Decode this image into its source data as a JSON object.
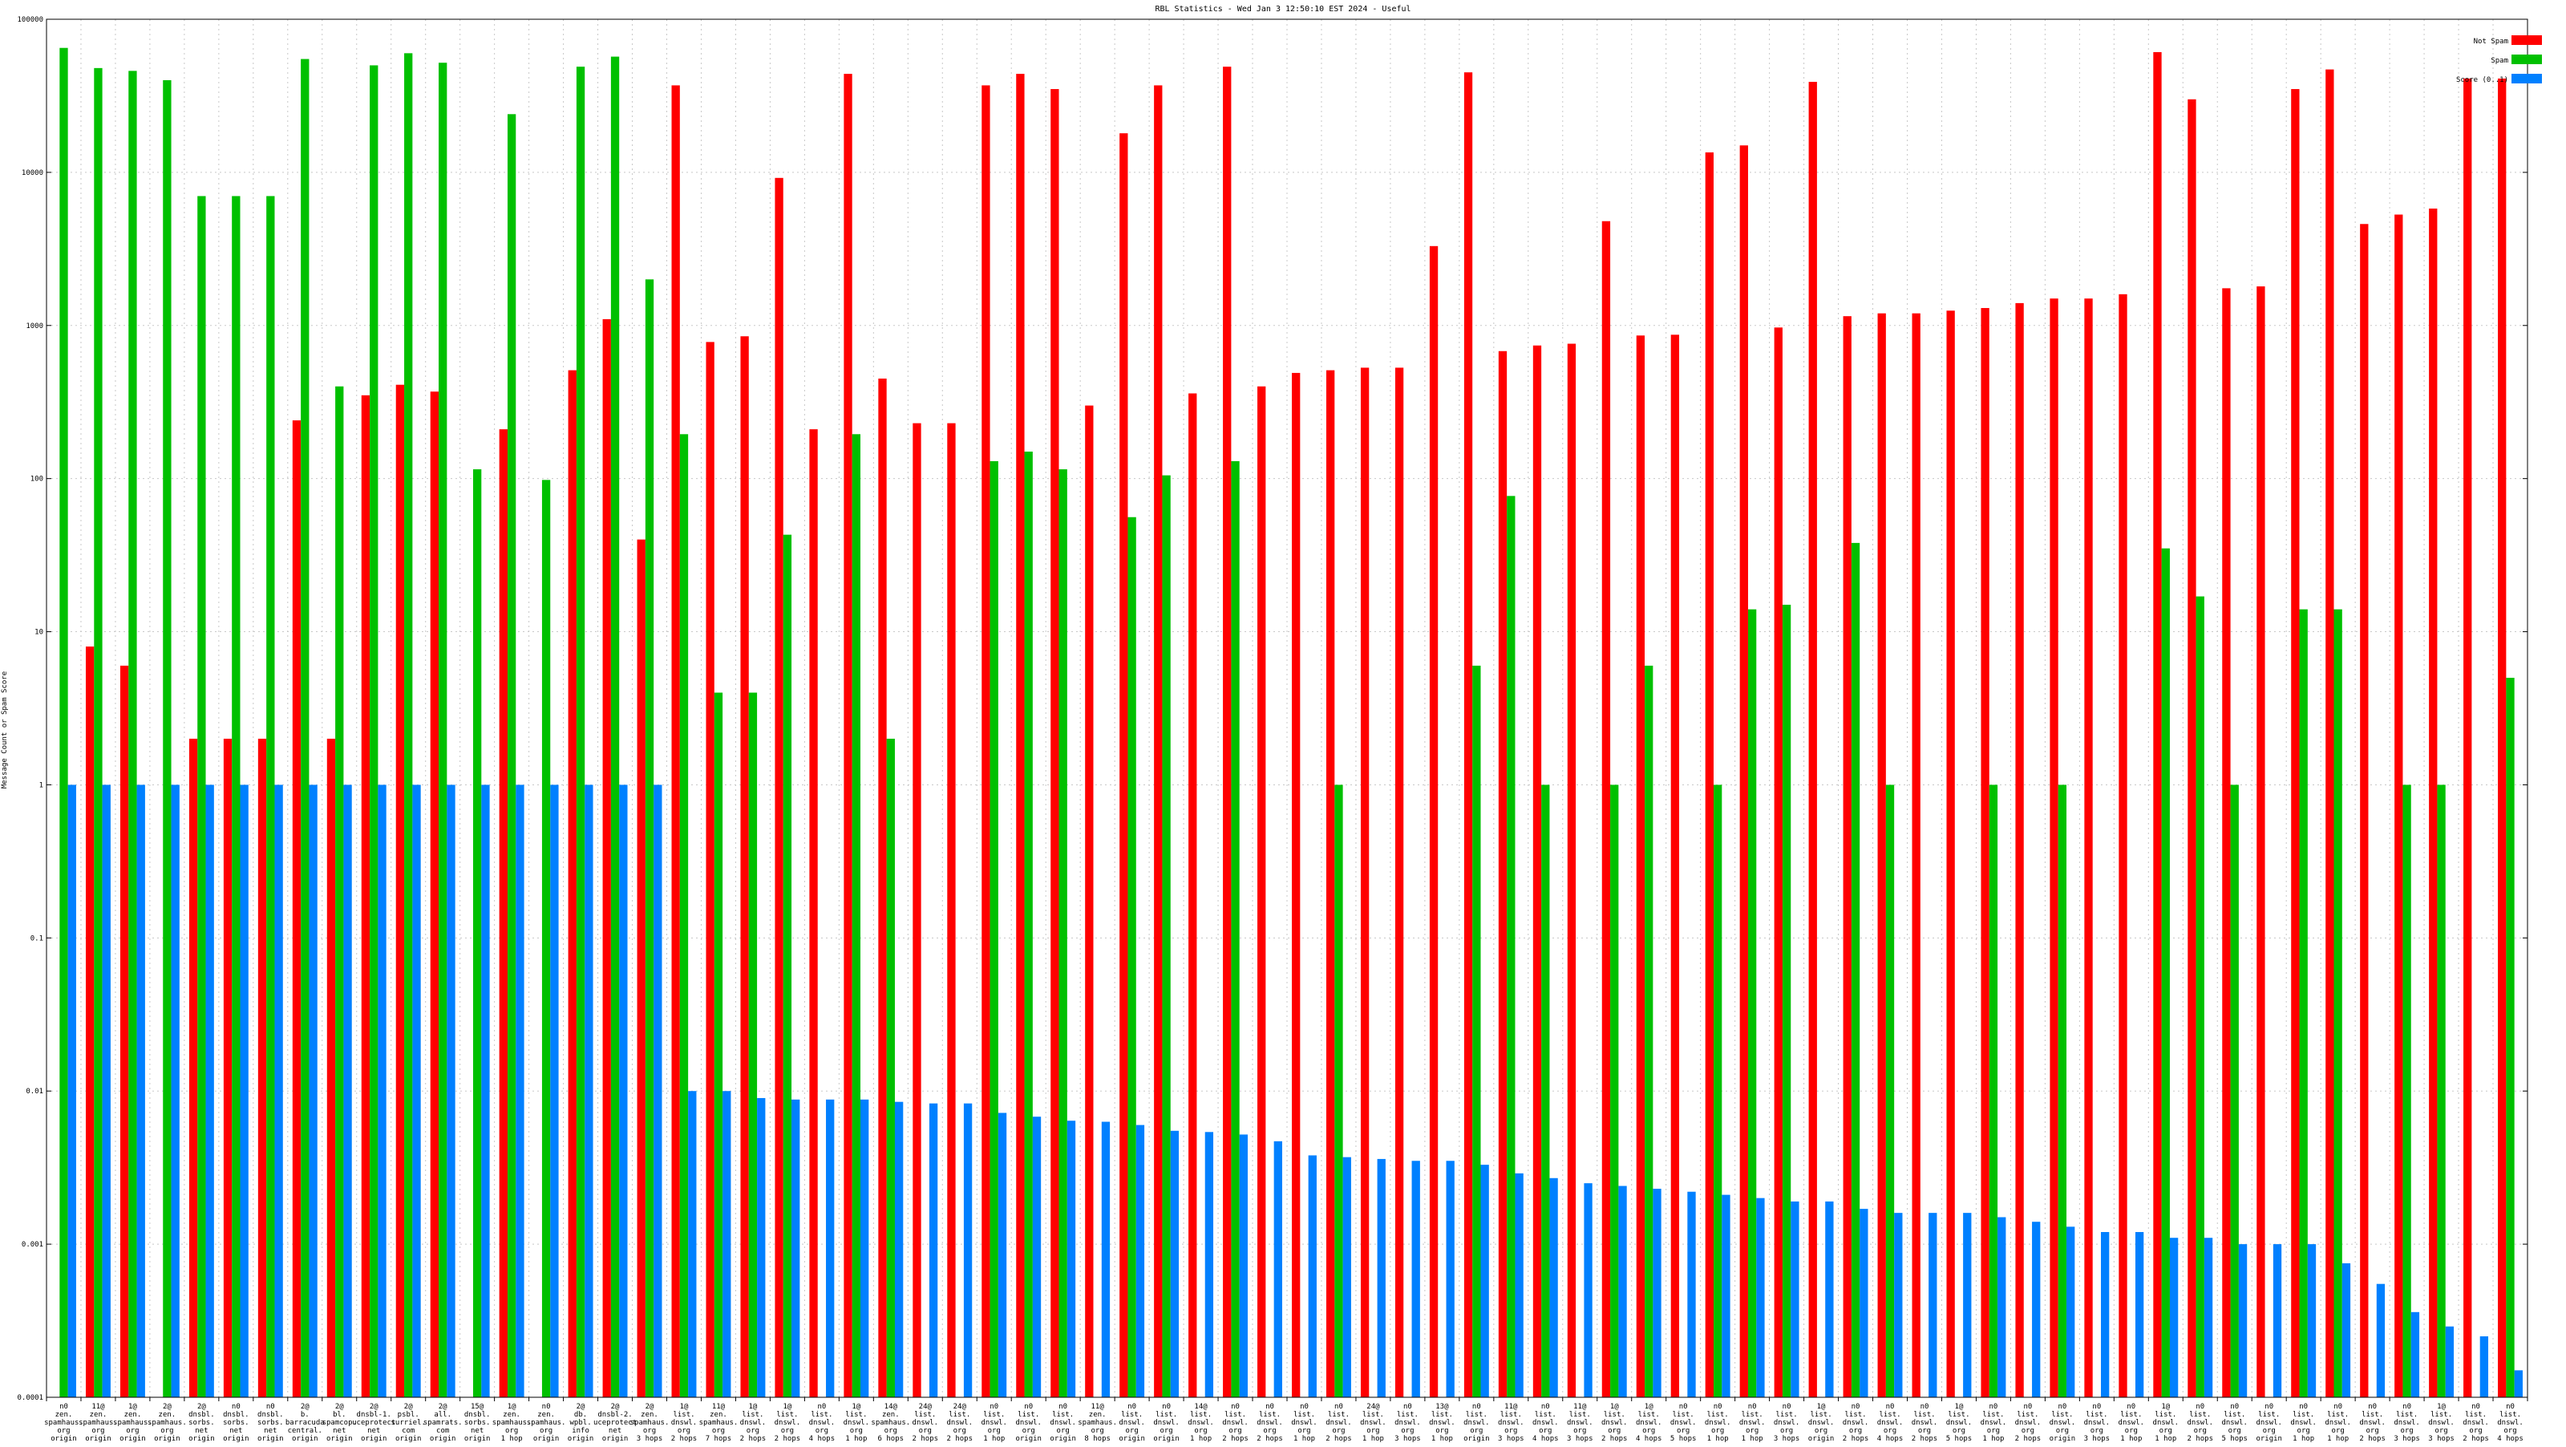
{
  "chart_data": {
    "type": "bar",
    "title": "RBL Statistics - Wed Jan  3 12:50:10 EST 2024 - Useful",
    "xlabel": "",
    "ylabel": "Message Count or Spam Score",
    "y_scale": "log",
    "ylim": [
      0.0001,
      100000
    ],
    "y_ticks": [
      "0.0001",
      "0.001",
      "0.01",
      "0.1",
      "1",
      "10",
      "100",
      "1000",
      "10000",
      "100000"
    ],
    "grid": true,
    "legend_position": "top-right",
    "colors": {
      "Not Spam": "#ff0000",
      "Spam": "#00c000",
      "Score": "#0080ff"
    },
    "categories": [
      [
        "n0",
        "zen.",
        "spamhaus.",
        "org",
        "origin"
      ],
      [
        "11@",
        "zen.",
        "spamhaus.",
        "org",
        "origin"
      ],
      [
        "1@",
        "zen.",
        "spamhaus.",
        "org",
        "origin"
      ],
      [
        "2@",
        "zen.",
        "spamhaus.",
        "org",
        "origin"
      ],
      [
        "2@",
        "dnsbl.",
        "sorbs.",
        "net",
        "origin"
      ],
      [
        "n0",
        "dnsbl.",
        "sorbs.",
        "net",
        "origin"
      ],
      [
        "n0",
        "dnsbl.",
        "sorbs.",
        "net",
        "origin"
      ],
      [
        "2@",
        "b.",
        "barracuda",
        "central.",
        "origin"
      ],
      [
        "2@",
        "bl.",
        "spamcop.",
        "net",
        "origin"
      ],
      [
        "2@",
        "dnsbl-1.",
        "uceprotect",
        "net",
        "origin"
      ],
      [
        "2@",
        "psbl.",
        "surriel.",
        "com",
        "origin"
      ],
      [
        "2@",
        "all.",
        "spamrats.",
        "com",
        "origin"
      ],
      [
        "15@",
        "dnsbl.",
        "sorbs.",
        "net",
        "origin"
      ],
      [
        "1@",
        "zen.",
        "spamhaus.",
        "org",
        "1 hop"
      ],
      [
        "n0",
        "zen.",
        "spamhaus.",
        "org",
        "origin"
      ],
      [
        "2@",
        "db.",
        "wpbl.",
        "info",
        "origin"
      ],
      [
        "2@",
        "dnsbl-2.",
        "uceprotect",
        "net",
        "origin"
      ],
      [
        "2@",
        "zen.",
        "spamhaus.",
        "org",
        "3 hops"
      ],
      [
        "1@",
        "list.",
        "dnswl.",
        "org",
        "2 hops"
      ],
      [
        "11@",
        "zen.",
        "spamhaus.",
        "org",
        "7 hops"
      ],
      [
        "1@",
        "list.",
        "dnswl.",
        "org",
        "2 hops"
      ],
      [
        "1@",
        "list.",
        "dnswl.",
        "org",
        "2 hops"
      ],
      [
        "n0",
        "list.",
        "dnswl.",
        "org",
        "4 hops"
      ],
      [
        "1@",
        "list.",
        "dnswl.",
        "org",
        "1 hop"
      ],
      [
        "14@",
        "zen.",
        "spamhaus.",
        "org",
        "6 hops"
      ],
      [
        "24@",
        "list.",
        "dnswl.",
        "org",
        "2 hops"
      ],
      [
        "24@",
        "list.",
        "dnswl.",
        "org",
        "2 hops"
      ],
      [
        "n0",
        "list.",
        "dnswl.",
        "org",
        "1 hop"
      ],
      [
        "n0",
        "list.",
        "dnswl.",
        "org",
        "origin"
      ],
      [
        "n0",
        "list.",
        "dnswl.",
        "org",
        "origin"
      ],
      [
        "11@",
        "zen.",
        "spamhaus.",
        "org",
        "8 hops"
      ],
      [
        "n0",
        "list.",
        "dnswl.",
        "org",
        "origin"
      ],
      [
        "n0",
        "list.",
        "dnswl.",
        "org",
        "origin"
      ],
      [
        "14@",
        "list.",
        "dnswl.",
        "org",
        "1 hop"
      ],
      [
        "n0",
        "list.",
        "dnswl.",
        "org",
        "2 hops"
      ],
      [
        "n0",
        "list.",
        "dnswl.",
        "org",
        "2 hops"
      ],
      [
        "n0",
        "list.",
        "dnswl.",
        "org",
        "1 hop"
      ],
      [
        "n0",
        "list.",
        "dnswl.",
        "org",
        "2 hops"
      ],
      [
        "24@",
        "list.",
        "dnswl.",
        "org",
        "1 hop"
      ],
      [
        "n0",
        "list.",
        "dnswl.",
        "org",
        "3 hops"
      ],
      [
        "13@",
        "list.",
        "dnswl.",
        "org",
        "1 hop"
      ],
      [
        "n0",
        "list.",
        "dnswl.",
        "org",
        "origin"
      ],
      [
        "11@",
        "list.",
        "dnswl.",
        "org",
        "3 hops"
      ],
      [
        "n0",
        "list.",
        "dnswl.",
        "org",
        "4 hops"
      ],
      [
        "11@",
        "list.",
        "dnswl.",
        "org",
        "3 hops"
      ],
      [
        "1@",
        "list.",
        "dnswl.",
        "org",
        "2 hops"
      ],
      [
        "1@",
        "list.",
        "dnswl.",
        "org",
        "4 hops"
      ],
      [
        "n0",
        "list.",
        "dnswl.",
        "org",
        "5 hops"
      ],
      [
        "n0",
        "list.",
        "dnswl.",
        "org",
        "1 hop"
      ],
      [
        "n0",
        "list.",
        "dnswl.",
        "org",
        "1 hop"
      ],
      [
        "n0",
        "list.",
        "dnswl.",
        "org",
        "3 hops"
      ],
      [
        "1@",
        "list.",
        "dnswl.",
        "org",
        "origin"
      ],
      [
        "n0",
        "list.",
        "dnswl.",
        "org",
        "2 hops"
      ],
      [
        "n0",
        "list.",
        "dnswl.",
        "org",
        "4 hops"
      ],
      [
        "n0",
        "list.",
        "dnswl.",
        "org",
        "2 hops"
      ],
      [
        "1@",
        "list.",
        "dnswl.",
        "org",
        "5 hops"
      ],
      [
        "n0",
        "list.",
        "dnswl.",
        "org",
        "1 hop"
      ],
      [
        "n0",
        "list.",
        "dnswl.",
        "org",
        "2 hops"
      ],
      [
        "n0",
        "list.",
        "dnswl.",
        "org",
        "origin"
      ],
      [
        "n0",
        "list.",
        "dnswl.",
        "org",
        "3 hops"
      ],
      [
        "n0",
        "list.",
        "dnswl.",
        "org",
        "1 hop"
      ],
      [
        "1@",
        "list.",
        "dnswl.",
        "org",
        "1 hop"
      ],
      [
        "n0",
        "list.",
        "dnswl.",
        "org",
        "2 hops"
      ],
      [
        "n0",
        "list.",
        "dnswl.",
        "org",
        "5 hops"
      ],
      [
        "n0",
        "list.",
        "dnswl.",
        "org",
        "origin"
      ],
      [
        "n0",
        "list.",
        "dnswl.",
        "org",
        "1 hop"
      ],
      [
        "n0",
        "list.",
        "dnswl.",
        "org",
        "1 hop"
      ],
      [
        "n0",
        "list.",
        "dnswl.",
        "org",
        "2 hops"
      ],
      [
        "n0",
        "list.",
        "dnswl.",
        "org",
        "3 hops"
      ],
      [
        "1@",
        "list.",
        "dnswl.",
        "org",
        "3 hops"
      ],
      [
        "n0",
        "list.",
        "dnswl.",
        "org",
        "2 hops"
      ],
      [
        "n0",
        "list.",
        "dnswl.",
        "org",
        "4 hops"
      ]
    ],
    "series": [
      {
        "name": "Not Spam",
        "values": [
          0,
          8,
          6,
          0,
          2,
          2,
          2,
          240,
          2,
          350,
          410,
          370,
          0,
          210,
          0,
          510,
          1100,
          40,
          37000,
          780,
          850,
          9200,
          210,
          44000,
          450,
          230,
          230,
          37000,
          44000,
          35000,
          300,
          18000,
          37000,
          360,
          49000,
          400,
          490,
          510,
          530,
          530,
          3300,
          45000,
          680,
          740,
          760,
          4800,
          860,
          870,
          13500,
          15000,
          970,
          39000,
          1150,
          1200,
          1200,
          1250,
          1300,
          1400,
          1500,
          1500,
          1600,
          61000,
          30000,
          1750,
          1800,
          35000,
          47000,
          4600,
          5300,
          5800,
          41000,
          41000
        ]
      },
      {
        "name": "Spam",
        "values": [
          65000,
          48000,
          46000,
          40000,
          7000,
          7000,
          7000,
          55000,
          400,
          50000,
          60000,
          52000,
          115,
          24000,
          98,
          49000,
          57000,
          2000,
          195,
          4,
          4,
          43,
          0,
          195,
          2,
          0,
          0,
          130,
          150,
          115,
          0,
          56,
          105,
          0,
          130,
          0,
          0,
          1,
          0,
          0,
          0,
          6,
          77,
          1,
          0,
          1,
          6,
          0,
          1,
          14,
          15,
          0,
          38,
          1,
          0,
          0,
          1,
          0,
          1,
          0,
          0,
          35,
          17,
          1,
          0,
          14,
          14,
          0,
          1,
          1,
          0,
          5
        ]
      },
      {
        "name": "Score",
        "values": [
          1,
          1,
          1,
          1,
          1,
          1,
          1,
          1,
          1,
          1,
          1,
          1,
          1,
          1,
          1,
          1,
          1,
          1,
          0.01,
          0.01,
          0.009,
          0.0088,
          0.0088,
          0.0088,
          0.0085,
          0.0083,
          0.0083,
          0.0072,
          0.0068,
          0.0064,
          0.0063,
          0.006,
          0.0055,
          0.0054,
          0.0052,
          0.0047,
          0.0038,
          0.0037,
          0.0036,
          0.0035,
          0.0035,
          0.0033,
          0.0029,
          0.0027,
          0.0025,
          0.0024,
          0.0023,
          0.0022,
          0.0021,
          0.002,
          0.0019,
          0.0019,
          0.0017,
          0.0016,
          0.0016,
          0.0016,
          0.0015,
          0.0014,
          0.0013,
          0.0012,
          0.0012,
          0.0011,
          0.0011,
          0.001,
          0.001,
          0.001,
          0.00075,
          0.00055,
          0.00036,
          0.00029,
          0.00025,
          0.00015
        ]
      }
    ],
    "legend": [
      {
        "label": "Not Spam",
        "color": "#ff0000"
      },
      {
        "label": "Spam",
        "color": "#00c000"
      },
      {
        "label": "Score (0..1)",
        "color": "#0080ff"
      }
    ]
  }
}
